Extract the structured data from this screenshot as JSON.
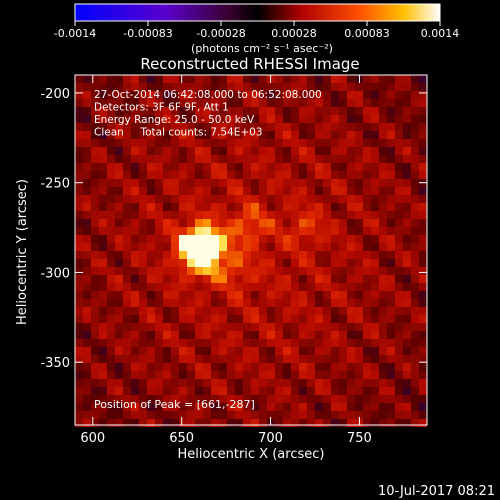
{
  "colorbar": {
    "ticks": [
      "-0.0014",
      "-0.00083",
      "-0.00028",
      "0.00028",
      "0.00083",
      "0.0014"
    ],
    "unit_label": "(photons cm⁻² s⁻¹ asec⁻²)",
    "min": -0.0014,
    "max": 0.0014
  },
  "chart_data": {
    "type": "heatmap",
    "title": "Reconstructed RHESSI Image",
    "xlabel": "Heliocentric X (arcsec)",
    "ylabel": "Heliocentric Y (arcsec)",
    "xlim": [
      590,
      788
    ],
    "ylim": [
      -385,
      -190
    ],
    "x_ticks": [
      "600",
      "650",
      "700",
      "750"
    ],
    "y_ticks": [
      "-200",
      "-250",
      "-300",
      "-350"
    ],
    "annotations": [
      "27-Oct-2014 06:42:08.000 to 06:52:08.000",
      "Detectors: 3F 6F 9F, Att 1",
      "Energy Range: 25.0 - 50.0 keV",
      "Clean     Total counts: 7.54E+03"
    ],
    "peak_label": "Position of Peak = [661,-287]",
    "peak": {
      "x": 661,
      "y": -287
    },
    "secondary_sources": [
      {
        "x": 688,
        "y": -274
      },
      {
        "x": 720,
        "y": -275
      },
      {
        "x": 680,
        "y": -300
      }
    ]
  },
  "footer": {
    "date": "10-Jul-2017 08:21"
  }
}
